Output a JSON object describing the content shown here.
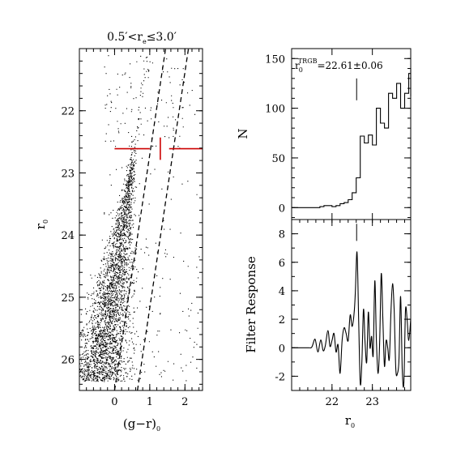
{
  "chart_data": [
    {
      "id": "cmd",
      "type": "scatter",
      "title": "0.5′<r_e≤3.0′",
      "title_parts": {
        "pre": "0.5′<r",
        "sub": "e",
        "post": "≤3.0′"
      },
      "xlabel": "(g−r)",
      "xlabel_sub": "0",
      "ylabel": "r",
      "ylabel_sub": "0",
      "xlim": [
        -1.0,
        2.5
      ],
      "ylim": [
        26.5,
        21.0
      ],
      "x_ticks": [
        0,
        1,
        2
      ],
      "y_ticks": [
        22,
        23,
        24,
        25,
        26
      ],
      "point_color": "#000000",
      "n_points": 9000,
      "rgb_line": {
        "y": 22.61,
        "x_range": [
          0.0,
          2.5
        ],
        "gap": [
          1.0,
          1.55
        ],
        "color": "#cc0000"
      },
      "rgb_error": {
        "x": 1.3,
        "y": 22.61,
        "err": 0.06,
        "color": "#cc0000"
      },
      "selection_box": {
        "left_line": [
          [
            0.0,
            26.5
          ],
          [
            1.45,
            21.0
          ]
        ],
        "right_line": [
          [
            0.65,
            26.5
          ],
          [
            2.1,
            21.0
          ]
        ],
        "style": "dashed"
      }
    },
    {
      "id": "lf",
      "type": "step",
      "xlabel": "",
      "ylabel": "N",
      "xlim": [
        21.0,
        23.95
      ],
      "ylim": [
        -12,
        160
      ],
      "x_ticks": [
        22,
        23
      ],
      "y_ticks": [
        0,
        50,
        100,
        150
      ],
      "annotation": "r_0^TRGB=22.61±0.06",
      "annotation_parts": {
        "pre": "r",
        "sub": "0",
        "sup": "TRGB",
        "post": "=22.61±0.06"
      },
      "trgb_marker": 22.61,
      "bin_width": 0.1,
      "bins_start": 21.0,
      "values": [
        0,
        0,
        0,
        0,
        0,
        0,
        0,
        1,
        2,
        2,
        1,
        2,
        4,
        5,
        8,
        15,
        30,
        72,
        65,
        73,
        63,
        100,
        85,
        80,
        115,
        110,
        125,
        100,
        115,
        135,
        112,
        130,
        140
      ]
    },
    {
      "id": "filter",
      "type": "line",
      "xlabel": "r",
      "xlabel_sub": "0",
      "ylabel": "Filter Response",
      "xlim": [
        21.0,
        23.95
      ],
      "ylim": [
        -3,
        9
      ],
      "x_ticks": [
        22,
        23
      ],
      "y_ticks": [
        -2,
        0,
        2,
        4,
        6,
        8
      ],
      "trgb_marker": 22.61,
      "x": [
        21.0,
        21.4,
        21.5,
        21.58,
        21.65,
        21.72,
        21.78,
        21.83,
        21.9,
        21.95,
        22.0,
        22.05,
        22.1,
        22.15,
        22.2,
        22.25,
        22.3,
        22.35,
        22.4,
        22.45,
        22.5,
        22.55,
        22.58,
        22.62,
        22.66,
        22.7,
        22.74,
        22.78,
        22.82,
        22.86,
        22.9,
        22.94,
        22.98,
        23.02,
        23.06,
        23.1,
        23.14,
        23.18,
        23.22,
        23.26,
        23.3,
        23.34,
        23.38,
        23.42,
        23.46,
        23.5,
        23.54,
        23.58,
        23.62,
        23.66,
        23.7,
        23.74,
        23.78,
        23.82,
        23.86,
        23.9,
        23.95
      ],
      "y": [
        0,
        0,
        0.05,
        0.6,
        -0.3,
        0.55,
        -0.2,
        0.1,
        1.2,
        0.1,
        0.5,
        1.0,
        -0.3,
        0.2,
        -1.8,
        0.5,
        1.4,
        1.0,
        0.5,
        2.3,
        1.5,
        2.5,
        4.0,
        6.7,
        2.0,
        -2.5,
        -1.0,
        2.7,
        0.3,
        -1.0,
        2.5,
        0.0,
        0.8,
        -0.5,
        4.7,
        0.5,
        -1.8,
        0.3,
        5.2,
        2.0,
        -1.3,
        0.5,
        0.0,
        -0.8,
        2.5,
        4.5,
        2.6,
        -1.5,
        -1.8,
        -0.8,
        3.6,
        -1.5,
        -2.5,
        2.6,
        2.0,
        0.5,
        2.0
      ]
    }
  ]
}
